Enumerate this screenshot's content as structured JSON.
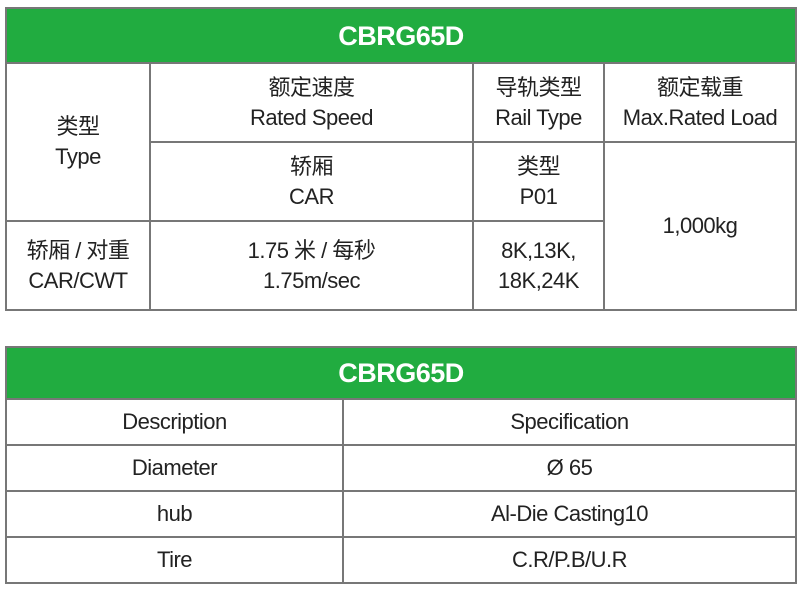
{
  "header_color": "#21ac40",
  "table1": {
    "title": "CBRG65D",
    "type_cn": "类型",
    "type_en": "Type",
    "speed_cn": "额定速度",
    "speed_en": "Rated Speed",
    "rail_cn": "导轨类型",
    "rail_en": "Rail Type",
    "load_cn": "额定载重",
    "load_en": "Max.Rated Load",
    "car_cn": "轿厢",
    "car_en": "CAR",
    "rail_type_cn": "类型",
    "rail_type_value": "P01",
    "load_value": "1,000kg",
    "carcwt_cn": "轿厢 / 对重",
    "carcwt_en": "CAR/CWT",
    "speed_value_cn": "1.75 米 / 每秒",
    "speed_value_en": "1.75m/sec",
    "rail_values_1": "8K,13K,",
    "rail_values_2": "18K,24K"
  },
  "table2": {
    "title": "CBRG65D",
    "headers": [
      "Description",
      "Specification"
    ],
    "rows": [
      [
        "Diameter",
        "Ø 65"
      ],
      [
        "hub",
        "Al-Die Casting10"
      ],
      [
        "Tire",
        "C.R/P.B/U.R"
      ]
    ]
  }
}
